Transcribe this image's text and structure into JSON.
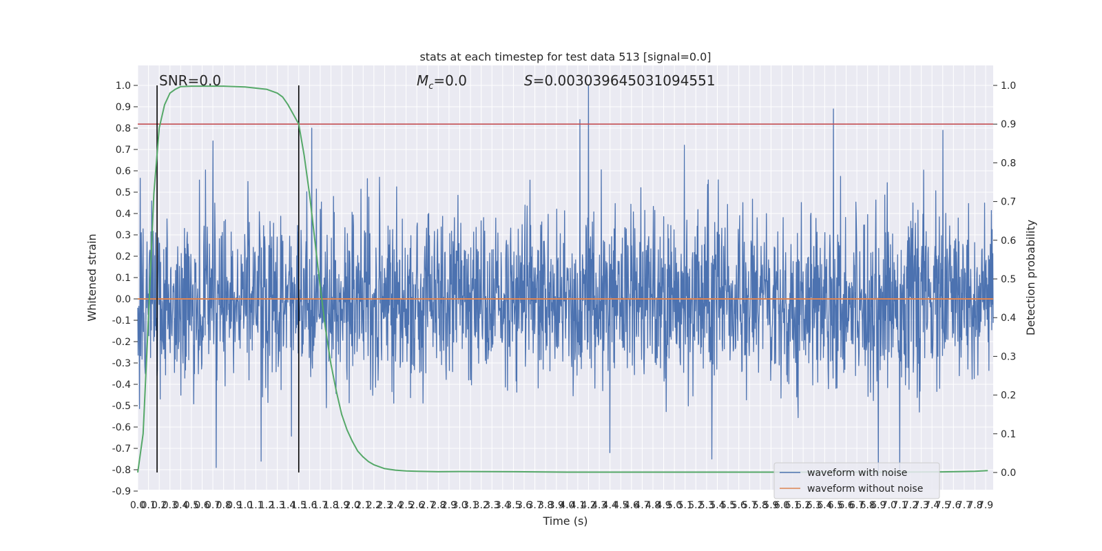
{
  "chart_data": {
    "type": "line",
    "title": "stats at each timestep for test data 513 [signal=0.0]",
    "xlabel": "Time (s)",
    "ylabel": "Whitened strain",
    "y2label": "Detection probability",
    "xlim": [
      0.0,
      7.97
    ],
    "ylim": [
      -0.9,
      1.08
    ],
    "y2lim": [
      0.0,
      1.0
    ],
    "x_tick_step": 0.1,
    "x_tick_labels": [
      "0.0",
      "0.1",
      "0.2",
      "0.3",
      "0.4",
      "0.5",
      "0.6",
      "0.7",
      "0.8",
      "0.9",
      "1.0",
      "1.1",
      "1.2",
      "1.3",
      "1.4",
      "1.5",
      "1.6",
      "1.7",
      "1.8",
      "1.9",
      "2.0",
      "2.1",
      "2.2",
      "2.3",
      "2.4",
      "2.5",
      "2.6",
      "2.7",
      "2.8",
      "2.9",
      "3.0",
      "3.1",
      "3.2",
      "3.3",
      "3.4",
      "3.5",
      "3.6",
      "3.7",
      "3.8",
      "3.9",
      "4.0",
      "4.1",
      "4.2",
      "4.3",
      "4.4",
      "4.5",
      "4.6",
      "4.7",
      "4.8",
      "4.9",
      "5.0",
      "5.1",
      "5.2",
      "5.3",
      "5.4",
      "5.5",
      "5.6",
      "5.7",
      "5.8",
      "5.9",
      "6.0",
      "6.1",
      "6.2",
      "6.3",
      "6.4",
      "6.5",
      "6.6",
      "6.7",
      "6.8",
      "6.9",
      "7.0",
      "7.1",
      "7.2",
      "7.3",
      "7.4",
      "7.5",
      "7.6",
      "7.7",
      "7.8",
      "7.9"
    ],
    "y_tick_labels": [
      "1.0",
      "0.9",
      "0.8",
      "0.7",
      "0.6",
      "0.5",
      "0.4",
      "0.3",
      "0.2",
      "0.1",
      "0.0",
      "-0.1",
      "-0.2",
      "-0.3",
      "-0.4",
      "-0.5",
      "-0.6",
      "-0.7",
      "-0.8",
      "-0.9"
    ],
    "y2_tick_labels": [
      "1.0",
      "0.9",
      "0.8",
      "0.7",
      "0.6",
      "0.5",
      "0.4",
      "0.3",
      "0.2",
      "0.1",
      "0.0"
    ],
    "annotations": {
      "snr": "SNR=0.0",
      "mc": "=0.0",
      "mc_symbol": "M",
      "mc_sub": "c",
      "s": "=0.003039645031094551",
      "s_symbol": "S"
    },
    "threshold": 0.9,
    "vlines_x": [
      0.18,
      1.5
    ],
    "series": [
      {
        "name": "waveform with noise",
        "color": "#4c72b0",
        "noise_sigma": 0.2,
        "spikes": [
          {
            "x": 0.7,
            "y": 0.74
          },
          {
            "x": 0.73,
            "y": -0.79
          },
          {
            "x": 1.62,
            "y": 0.8
          },
          {
            "x": 4.12,
            "y": 0.84
          },
          {
            "x": 4.2,
            "y": 1.0
          },
          {
            "x": 6.48,
            "y": 0.89
          },
          {
            "x": 7.5,
            "y": 0.79
          },
          {
            "x": 6.9,
            "y": -0.83
          },
          {
            "x": 7.1,
            "y": -0.82
          },
          {
            "x": 4.4,
            "y": -0.72
          },
          {
            "x": 1.15,
            "y": -0.76
          },
          {
            "x": 5.35,
            "y": -0.75
          }
        ]
      },
      {
        "name": "waveform without noise",
        "color": "#dd8452",
        "value": 0.0
      },
      {
        "name": "Detection probability",
        "color": "#55a868",
        "axis": "y2",
        "x": [
          0.0,
          0.05,
          0.1,
          0.15,
          0.2,
          0.25,
          0.3,
          0.35,
          0.4,
          0.5,
          0.6,
          0.8,
          1.0,
          1.2,
          1.3,
          1.35,
          1.4,
          1.45,
          1.5,
          1.55,
          1.6,
          1.65,
          1.7,
          1.75,
          1.8,
          1.85,
          1.9,
          1.95,
          2.0,
          2.05,
          2.1,
          2.15,
          2.2,
          2.3,
          2.4,
          2.5,
          2.6,
          2.8,
          3.0,
          3.5,
          4.0,
          5.0,
          6.0,
          7.0,
          7.5,
          7.8,
          7.92
        ],
        "y": [
          0.0,
          0.1,
          0.4,
          0.72,
          0.89,
          0.95,
          0.98,
          0.99,
          0.997,
          0.998,
          0.998,
          0.998,
          0.996,
          0.99,
          0.98,
          0.97,
          0.95,
          0.925,
          0.9,
          0.82,
          0.72,
          0.6,
          0.48,
          0.37,
          0.28,
          0.21,
          0.15,
          0.11,
          0.08,
          0.055,
          0.04,
          0.028,
          0.02,
          0.01,
          0.006,
          0.004,
          0.003,
          0.002,
          0.0025,
          0.002,
          0.001,
          0.001,
          0.001,
          0.001,
          0.0015,
          0.003,
          0.005
        ]
      }
    ],
    "legend": {
      "placement": "lower-right",
      "entries": [
        "waveform with noise",
        "waveform without noise"
      ]
    },
    "grid": true,
    "colors": {
      "axes_bg": "#eaeaf2",
      "grid": "#ffffff",
      "threshold": "#c44e52",
      "vline": "#000000"
    }
  }
}
